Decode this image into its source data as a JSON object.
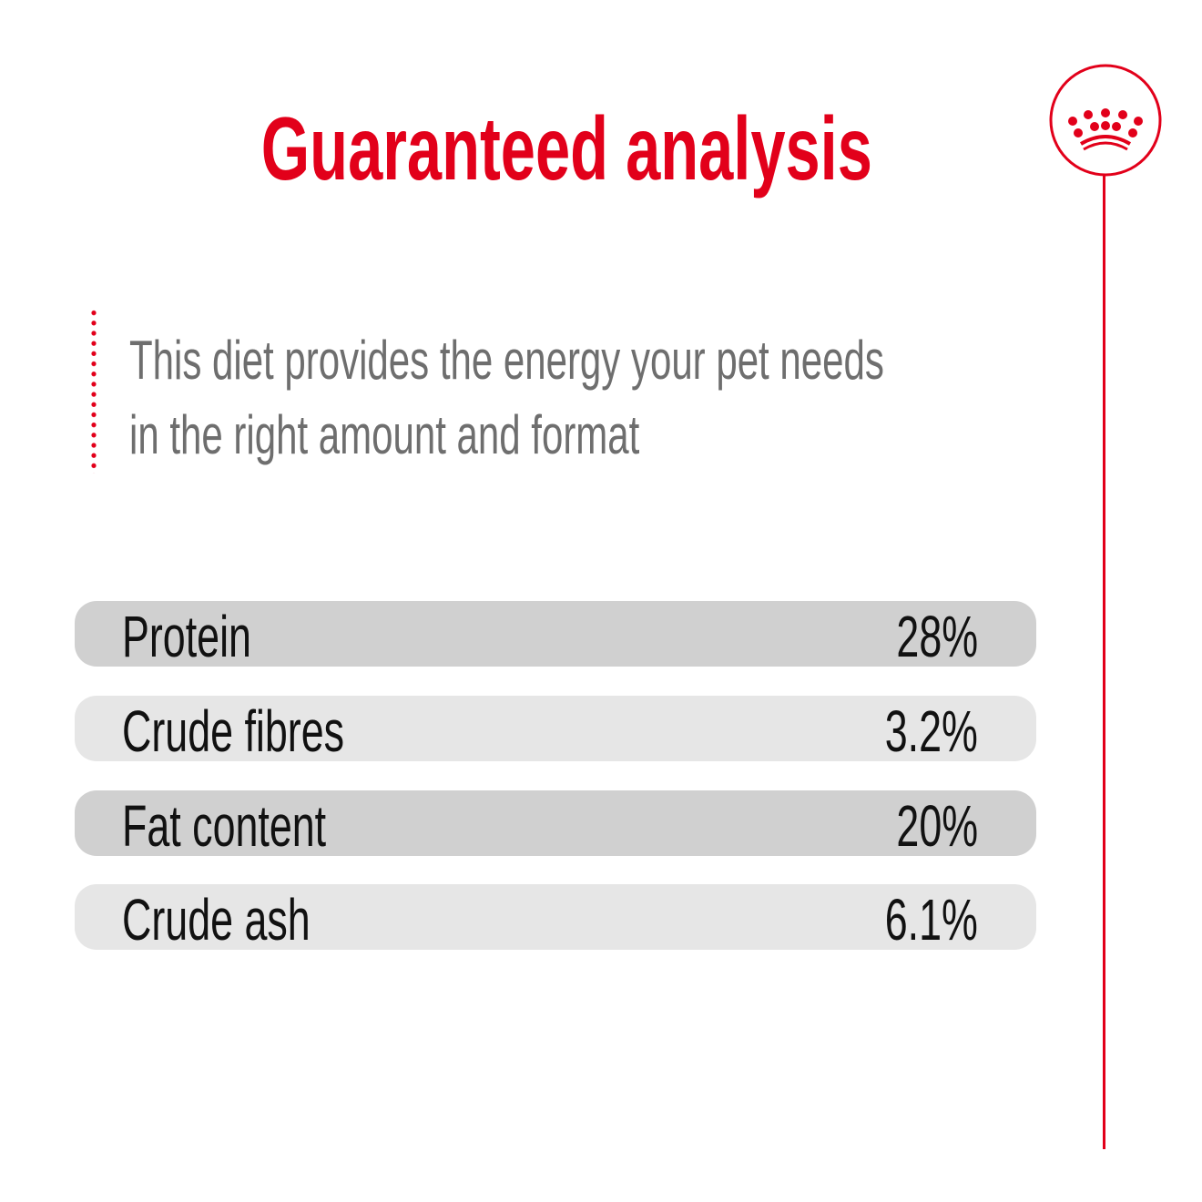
{
  "title": "Guaranteed analysis",
  "description": {
    "line1": "This diet provides the energy your pet needs",
    "line2": "in the right amount and format"
  },
  "analysis": [
    {
      "label": "Protein",
      "value": "28%"
    },
    {
      "label": "Crude fibres",
      "value": "3.2%"
    },
    {
      "label": "Fat content",
      "value": "20%"
    },
    {
      "label": "Crude ash",
      "value": "6.1%"
    }
  ],
  "colors": {
    "accent": "#e2001a",
    "row_dark": "#d0d0d0",
    "row_light": "#e6e6e6",
    "text_grey": "#6e6e6e"
  },
  "logo": {
    "icon": "crown-icon"
  }
}
